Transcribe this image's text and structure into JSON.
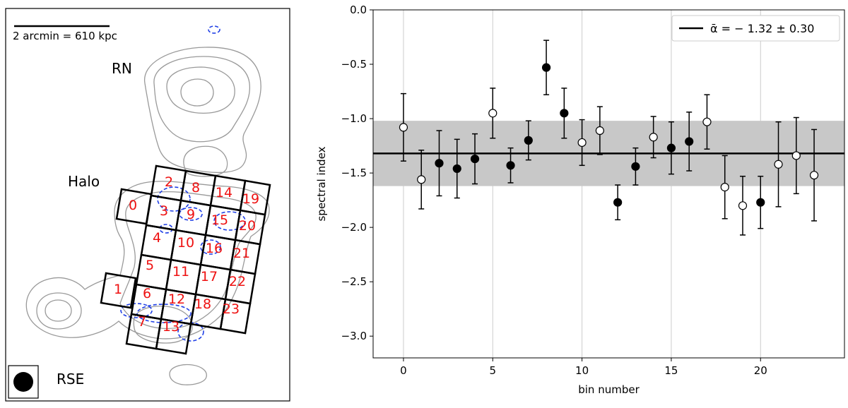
{
  "map": {
    "scalebar_label": "2 arcmin = 610 kpc",
    "labels": {
      "rn": "RN",
      "halo": "Halo",
      "rse": "RSE"
    },
    "bin_labels": [
      "0",
      "1",
      "2",
      "3",
      "4",
      "5",
      "6",
      "7",
      "8",
      "9",
      "10",
      "11",
      "12",
      "13",
      "14",
      "15",
      "16",
      "17",
      "18",
      "19",
      "20",
      "21",
      "22",
      "23"
    ],
    "bin_label_color": "#ee1111",
    "contour_color": "#999999",
    "negative_contour_color": "#1f3fe6"
  },
  "chart_data": {
    "type": "scatter",
    "xlabel": "bin number",
    "ylabel": "spectral index",
    "xlim": [
      -1.7,
      24.7
    ],
    "ylim": [
      -3.2,
      0.0
    ],
    "xticks": [
      0,
      5,
      10,
      15,
      20
    ],
    "yticks": [
      0.0,
      -0.5,
      -1.0,
      -1.5,
      -2.0,
      -2.5,
      -3.0
    ],
    "xtick_labels": [
      "0",
      "5",
      "10",
      "15",
      "20"
    ],
    "ytick_labels": [
      "0.0",
      "−0.5",
      "−1.0",
      "−1.5",
      "−2.0",
      "−2.5",
      "−3.0"
    ],
    "grid": "vertical",
    "legend": {
      "position": "top-right",
      "label": "ᾱ = − 1.32 ± 0.30"
    },
    "mean": -1.32,
    "std": 0.3,
    "points": [
      {
        "x": 0,
        "y": -1.08,
        "yerr": 0.31,
        "filled": false
      },
      {
        "x": 1,
        "y": -1.56,
        "yerr": 0.27,
        "filled": false
      },
      {
        "x": 2,
        "y": -1.41,
        "yerr": 0.3,
        "filled": true
      },
      {
        "x": 3,
        "y": -1.46,
        "yerr": 0.27,
        "filled": true
      },
      {
        "x": 4,
        "y": -1.37,
        "yerr": 0.23,
        "filled": true
      },
      {
        "x": 5,
        "y": -0.95,
        "yerr": 0.23,
        "filled": false
      },
      {
        "x": 6,
        "y": -1.43,
        "yerr": 0.16,
        "filled": true
      },
      {
        "x": 7,
        "y": -1.2,
        "yerr": 0.18,
        "filled": true
      },
      {
        "x": 8,
        "y": -0.53,
        "yerr": 0.25,
        "filled": true
      },
      {
        "x": 9,
        "y": -0.95,
        "yerr": 0.23,
        "filled": true
      },
      {
        "x": 10,
        "y": -1.22,
        "yerr": 0.21,
        "filled": false
      },
      {
        "x": 11,
        "y": -1.11,
        "yerr": 0.22,
        "filled": false
      },
      {
        "x": 12,
        "y": -1.77,
        "yerr": 0.16,
        "filled": true
      },
      {
        "x": 13,
        "y": -1.44,
        "yerr": 0.17,
        "filled": true
      },
      {
        "x": 14,
        "y": -1.17,
        "yerr": 0.19,
        "filled": false
      },
      {
        "x": 15,
        "y": -1.27,
        "yerr": 0.24,
        "filled": true
      },
      {
        "x": 16,
        "y": -1.21,
        "yerr": 0.27,
        "filled": true
      },
      {
        "x": 17,
        "y": -1.03,
        "yerr": 0.25,
        "filled": false
      },
      {
        "x": 18,
        "y": -1.63,
        "yerr": 0.29,
        "filled": false
      },
      {
        "x": 19,
        "y": -1.8,
        "yerr": 0.27,
        "filled": false
      },
      {
        "x": 20,
        "y": -1.77,
        "yerr": 0.24,
        "filled": true
      },
      {
        "x": 21,
        "y": -1.42,
        "yerr": 0.39,
        "filled": false
      },
      {
        "x": 22,
        "y": -1.34,
        "yerr": 0.35,
        "filled": false
      },
      {
        "x": 23,
        "y": -1.52,
        "yerr": 0.42,
        "filled": false
      }
    ],
    "colors": {
      "marker": "#000000",
      "band": "#c8c8c8",
      "grid": "#cccccc"
    }
  }
}
